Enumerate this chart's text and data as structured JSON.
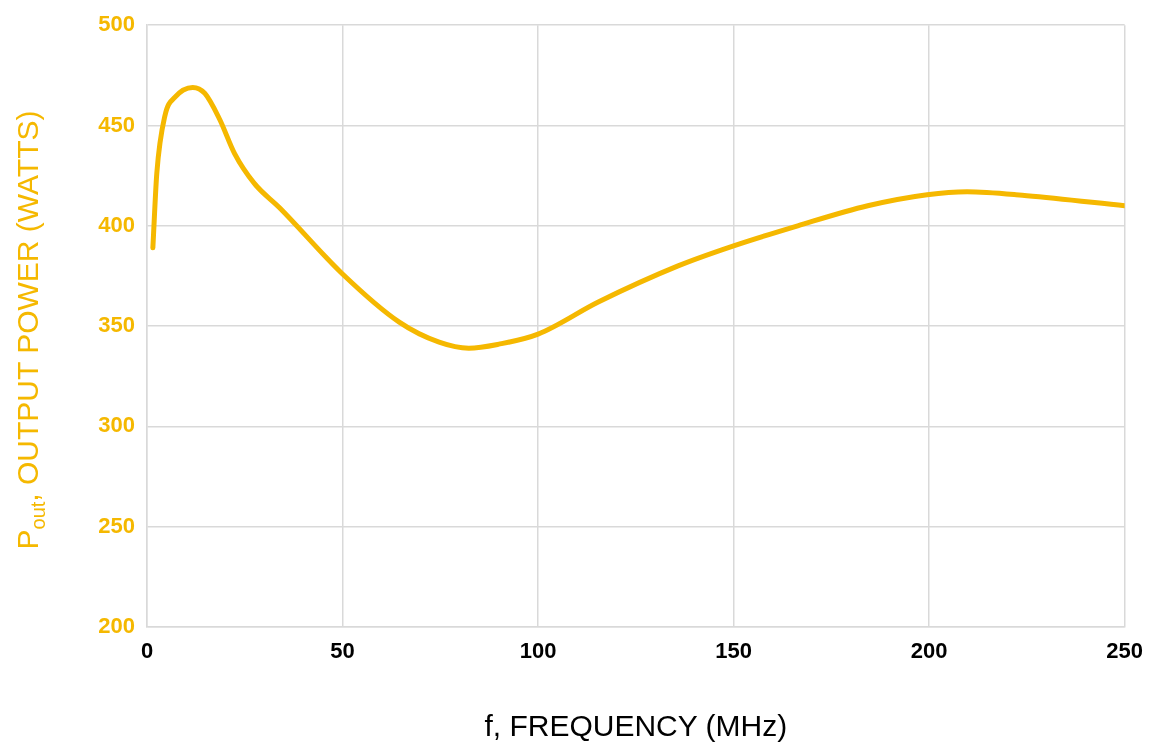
{
  "chart_data": {
    "type": "line",
    "xlabel": "f, FREQUENCY (MHz)",
    "ylabel": "P$_{out}$, OUTPUT POWER (WATTS)",
    "xlim": [
      0,
      250
    ],
    "xticks": [
      0,
      50,
      100,
      150,
      200,
      250
    ],
    "ylim": [
      200,
      500
    ],
    "yticks": [
      200,
      250,
      300,
      350,
      400,
      450,
      500
    ],
    "grid": true,
    "marker": "none",
    "line_style": "solid",
    "series": [
      {
        "color": "#f5b800",
        "x": [
          1.5,
          2.5,
          4.6,
          7.1,
          11.7,
          14.8,
          18.6,
          22.4,
          27.5,
          33.9,
          50,
          64.5,
          74.7,
          82.3,
          90,
          100,
          115.4,
          135.8,
          150,
          166.4,
          184.3,
          199.5,
          209.7,
          225,
          250
        ],
        "values": [
          389,
          426,
          455,
          464,
          469,
          466,
          453,
          436,
          421,
          409,
          376,
          352,
          342,
          339,
          341,
          346,
          362,
          380,
          390,
          400,
          410,
          415.5,
          417,
          415,
          410
        ]
      }
    ]
  }
}
